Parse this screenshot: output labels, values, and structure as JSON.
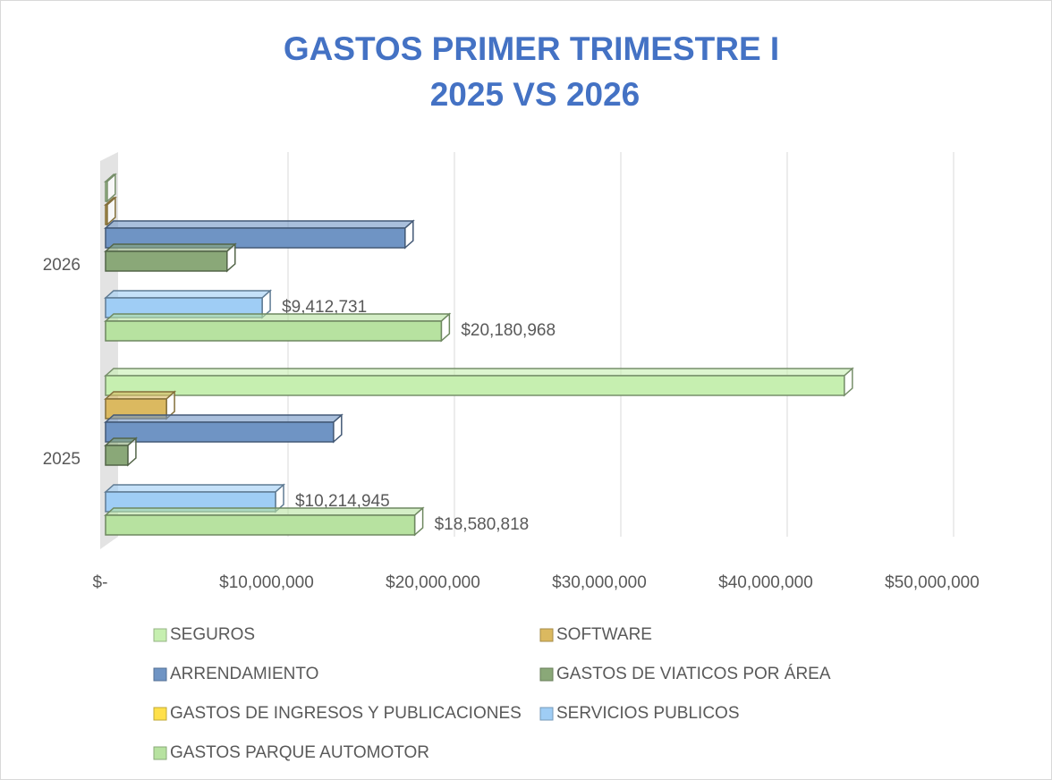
{
  "chart_data": {
    "type": "bar",
    "orientation": "horizontal",
    "title": [
      "GASTOS PRIMER TRIMESTRE I",
      "2025 VS 2026"
    ],
    "categories": [
      "2026",
      "2025"
    ],
    "series": [
      {
        "name": "SEGUROS",
        "color": "#c6efb0",
        "values": [
          100000,
          44400000
        ]
      },
      {
        "name": "SOFTWARE",
        "color": "#dbb960",
        "values": [
          100000,
          3660000
        ]
      },
      {
        "name": "ARRENDAMIENTO",
        "color": "#6f94c4",
        "values": [
          18000000,
          13700000
        ]
      },
      {
        "name": "GASTOS DE VIATICOS POR ÁREA",
        "color": "#8aa878",
        "values": [
          7300000,
          1340000
        ]
      },
      {
        "name": "GASTOS  DE INGRESOS Y PUBLICACIONES",
        "color": "#ffe04a",
        "values": [
          0,
          0
        ]
      },
      {
        "name": "SERVICIOS PUBLICOS",
        "color": "#9fcdf5",
        "values": [
          9412731,
          10214945
        ],
        "value_labels": [
          "$9,412,731",
          "$10,214,945"
        ]
      },
      {
        "name": "GASTOS PARQUE AUTOMOTOR",
        "color": "#b7e2a0",
        "values": [
          20180968,
          18580818
        ],
        "value_labels": [
          "$20,180,968",
          "$18,580,818"
        ]
      }
    ],
    "xlim": [
      0,
      50000000
    ],
    "xticks": [
      {
        "value": 0,
        "label": "$-"
      },
      {
        "value": 10000000,
        "label": "$10,000,000"
      },
      {
        "value": 20000000,
        "label": "$20,000,000"
      },
      {
        "value": 30000000,
        "label": "$30,000,000"
      },
      {
        "value": 40000000,
        "label": "$40,000,000"
      },
      {
        "value": 50000000,
        "label": "$50,000,000"
      }
    ],
    "grid": true,
    "legend": "bottom"
  }
}
